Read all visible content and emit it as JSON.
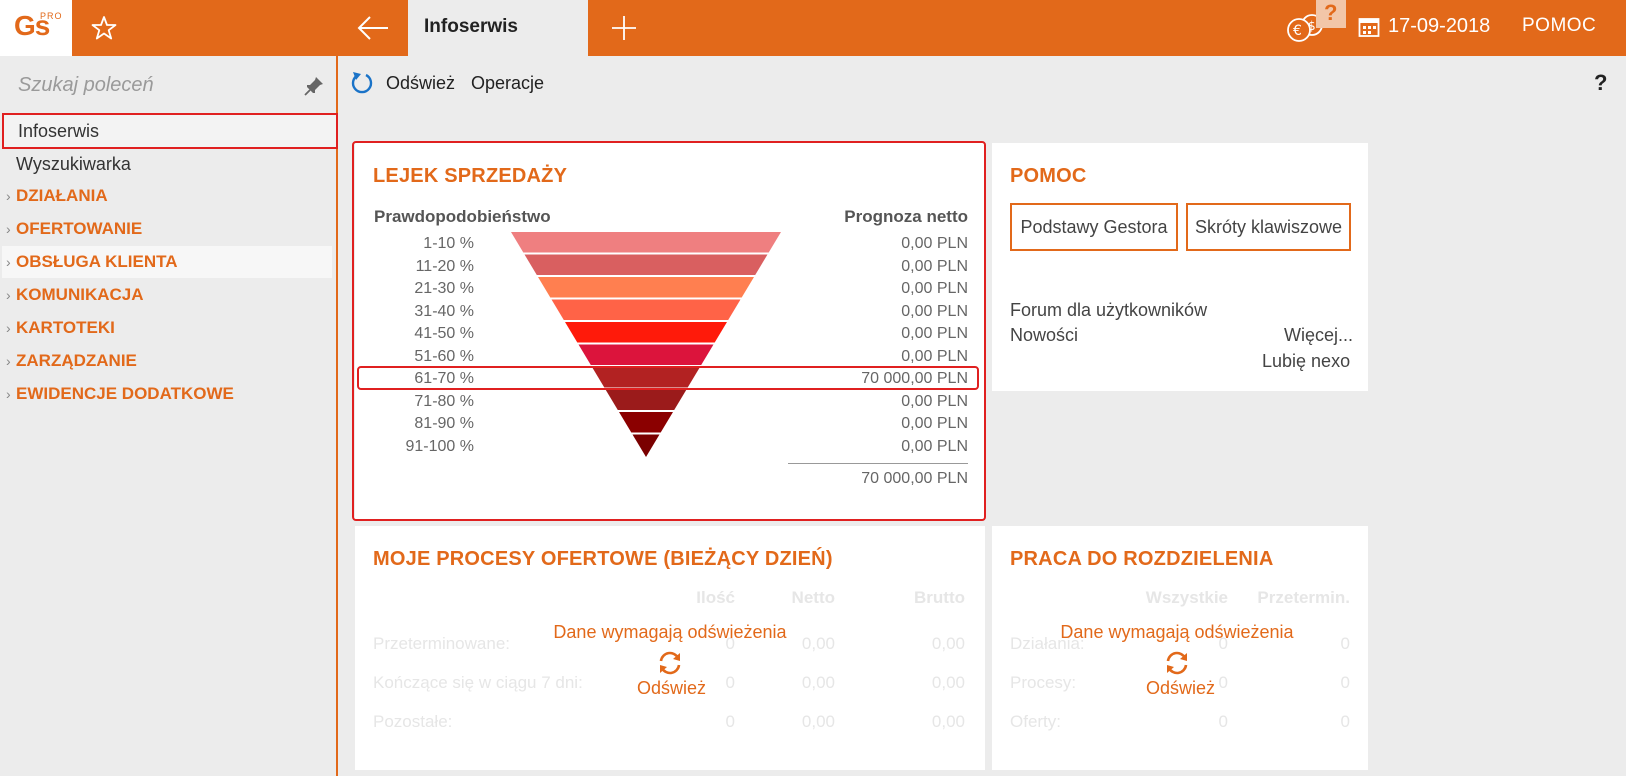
{
  "app": {
    "logo": "Gs",
    "logo_sup": "PRO"
  },
  "tabs": {
    "active": "Infoserwis"
  },
  "header": {
    "date": "17-09-2018",
    "help": "POMOC",
    "qmark": "?"
  },
  "sidebar": {
    "search_placeholder": "Szukaj poleceń",
    "items": [
      "Infoserwis",
      "Wyszukiwarka"
    ],
    "sections": [
      "DZIAŁANIA",
      "OFERTOWANIE",
      "OBSŁUGA KLIENTA",
      "KOMUNIKACJA",
      "KARTOTEKI",
      "ZARZĄDZANIE",
      "EWIDENCJE DODATKOWE"
    ]
  },
  "toolbar": {
    "refresh": "Odśwież",
    "operations": "Operacje",
    "help": "?"
  },
  "funnel": {
    "title": "LEJEK SPRZEDAŻY",
    "col_probability": "Prawdopodobieństwo",
    "col_forecast": "Prognoza netto",
    "rows": [
      {
        "range": "1-10 %",
        "amount": "0,00 PLN",
        "color": "#ef7f80"
      },
      {
        "range": "11-20 %",
        "amount": "0,00 PLN",
        "color": "#d95f60"
      },
      {
        "range": "21-30 %",
        "amount": "0,00 PLN",
        "color": "#ff7f50"
      },
      {
        "range": "31-40 %",
        "amount": "0,00 PLN",
        "color": "#ff6347"
      },
      {
        "range": "41-50 %",
        "amount": "0,00 PLN",
        "color": "#ff1a0a"
      },
      {
        "range": "51-60 %",
        "amount": "0,00 PLN",
        "color": "#dc143c"
      },
      {
        "range": "61-70 %",
        "amount": "70 000,00 PLN",
        "color": "#b22222"
      },
      {
        "range": "71-80 %",
        "amount": "0,00 PLN",
        "color": "#9b1b1b"
      },
      {
        "range": "81-90 %",
        "amount": "0,00 PLN",
        "color": "#8b0000"
      },
      {
        "range": "91-100 %",
        "amount": "0,00 PLN",
        "color": "#7a0000"
      }
    ],
    "total": "70 000,00 PLN"
  },
  "help_panel": {
    "title": "POMOC",
    "btn_basics": "Podstawy Gestora",
    "btn_shortcuts": "Skróty klawiszowe",
    "forum": "Forum dla użytkowników",
    "news": "Nowości",
    "more": "Więcej...",
    "like": "Lubię nexo"
  },
  "offers_panel": {
    "title": "MOJE PROCESY OFERTOWE (BIEŻĄCY DZIEŃ)",
    "headers": [
      "Ilość",
      "Netto",
      "Brutto"
    ],
    "rows": [
      {
        "label": "Przeterminowane:",
        "qty": "0",
        "net": "0,00",
        "gross": "0,00"
      },
      {
        "label": "Kończące się w ciągu 7 dni:",
        "qty": "0",
        "net": "0,00",
        "gross": "0,00"
      },
      {
        "label": "Pozostałe:",
        "qty": "0",
        "net": "0,00",
        "gross": "0,00"
      }
    ],
    "refresh_msg": "Dane wymagają odświeżenia",
    "refresh_link": "Odśwież"
  },
  "work_panel": {
    "title": "PRACA DO ROZDZIELENIA",
    "headers": [
      "Wszystkie",
      "Przetermin."
    ],
    "rows": [
      {
        "label": "Działania:",
        "all": "0",
        "overdue": "0"
      },
      {
        "label": "Procesy:",
        "all": "0",
        "overdue": "0"
      },
      {
        "label": "Oferty:",
        "all": "0",
        "overdue": "0"
      }
    ],
    "refresh_msg": "Dane wymagają odświeżenia",
    "refresh_link": "Odśwież"
  }
}
